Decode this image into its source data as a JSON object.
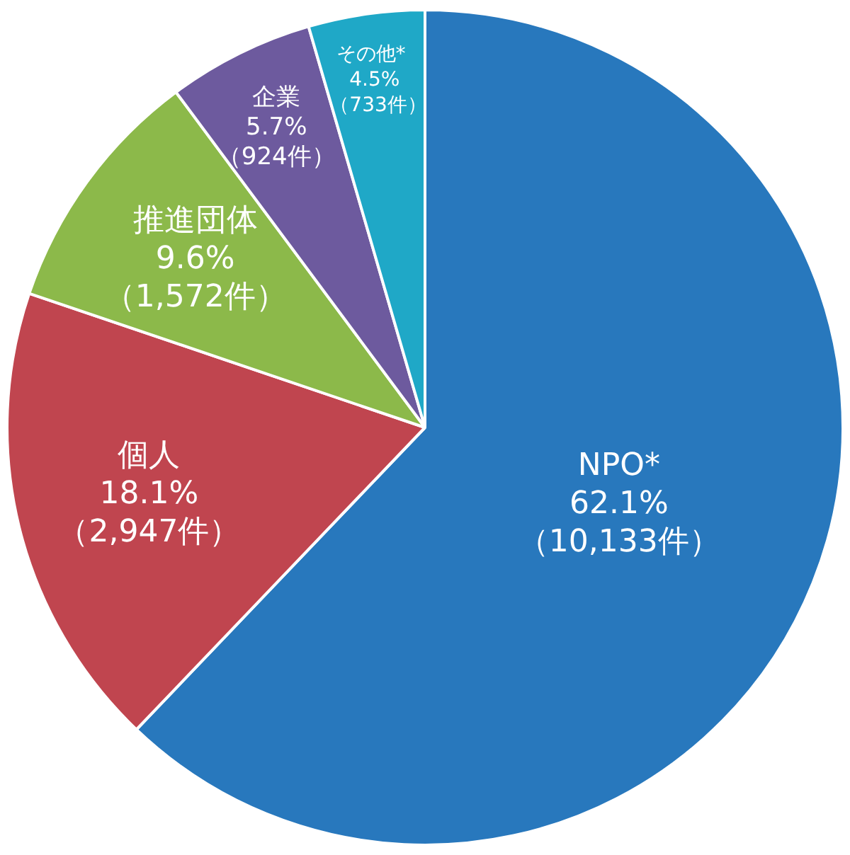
{
  "chart_data": {
    "type": "pie",
    "categories": [
      "NPO*",
      "個人",
      "推進団体",
      "企業",
      "その他*"
    ],
    "values": [
      10133,
      2947,
      1572,
      924,
      733
    ],
    "colors": [
      "#2878bd",
      "#c0454f",
      "#8cb94a",
      "#6d5a9e",
      "#1fa8c7"
    ],
    "value_labels": [
      "62.1%\n（10,133件）",
      "18.1%\n（2,947件）",
      "9.6%\n（1,572件）",
      "5.7%\n（924件）",
      "4.5%\n（733件）"
    ],
    "legend": false
  }
}
